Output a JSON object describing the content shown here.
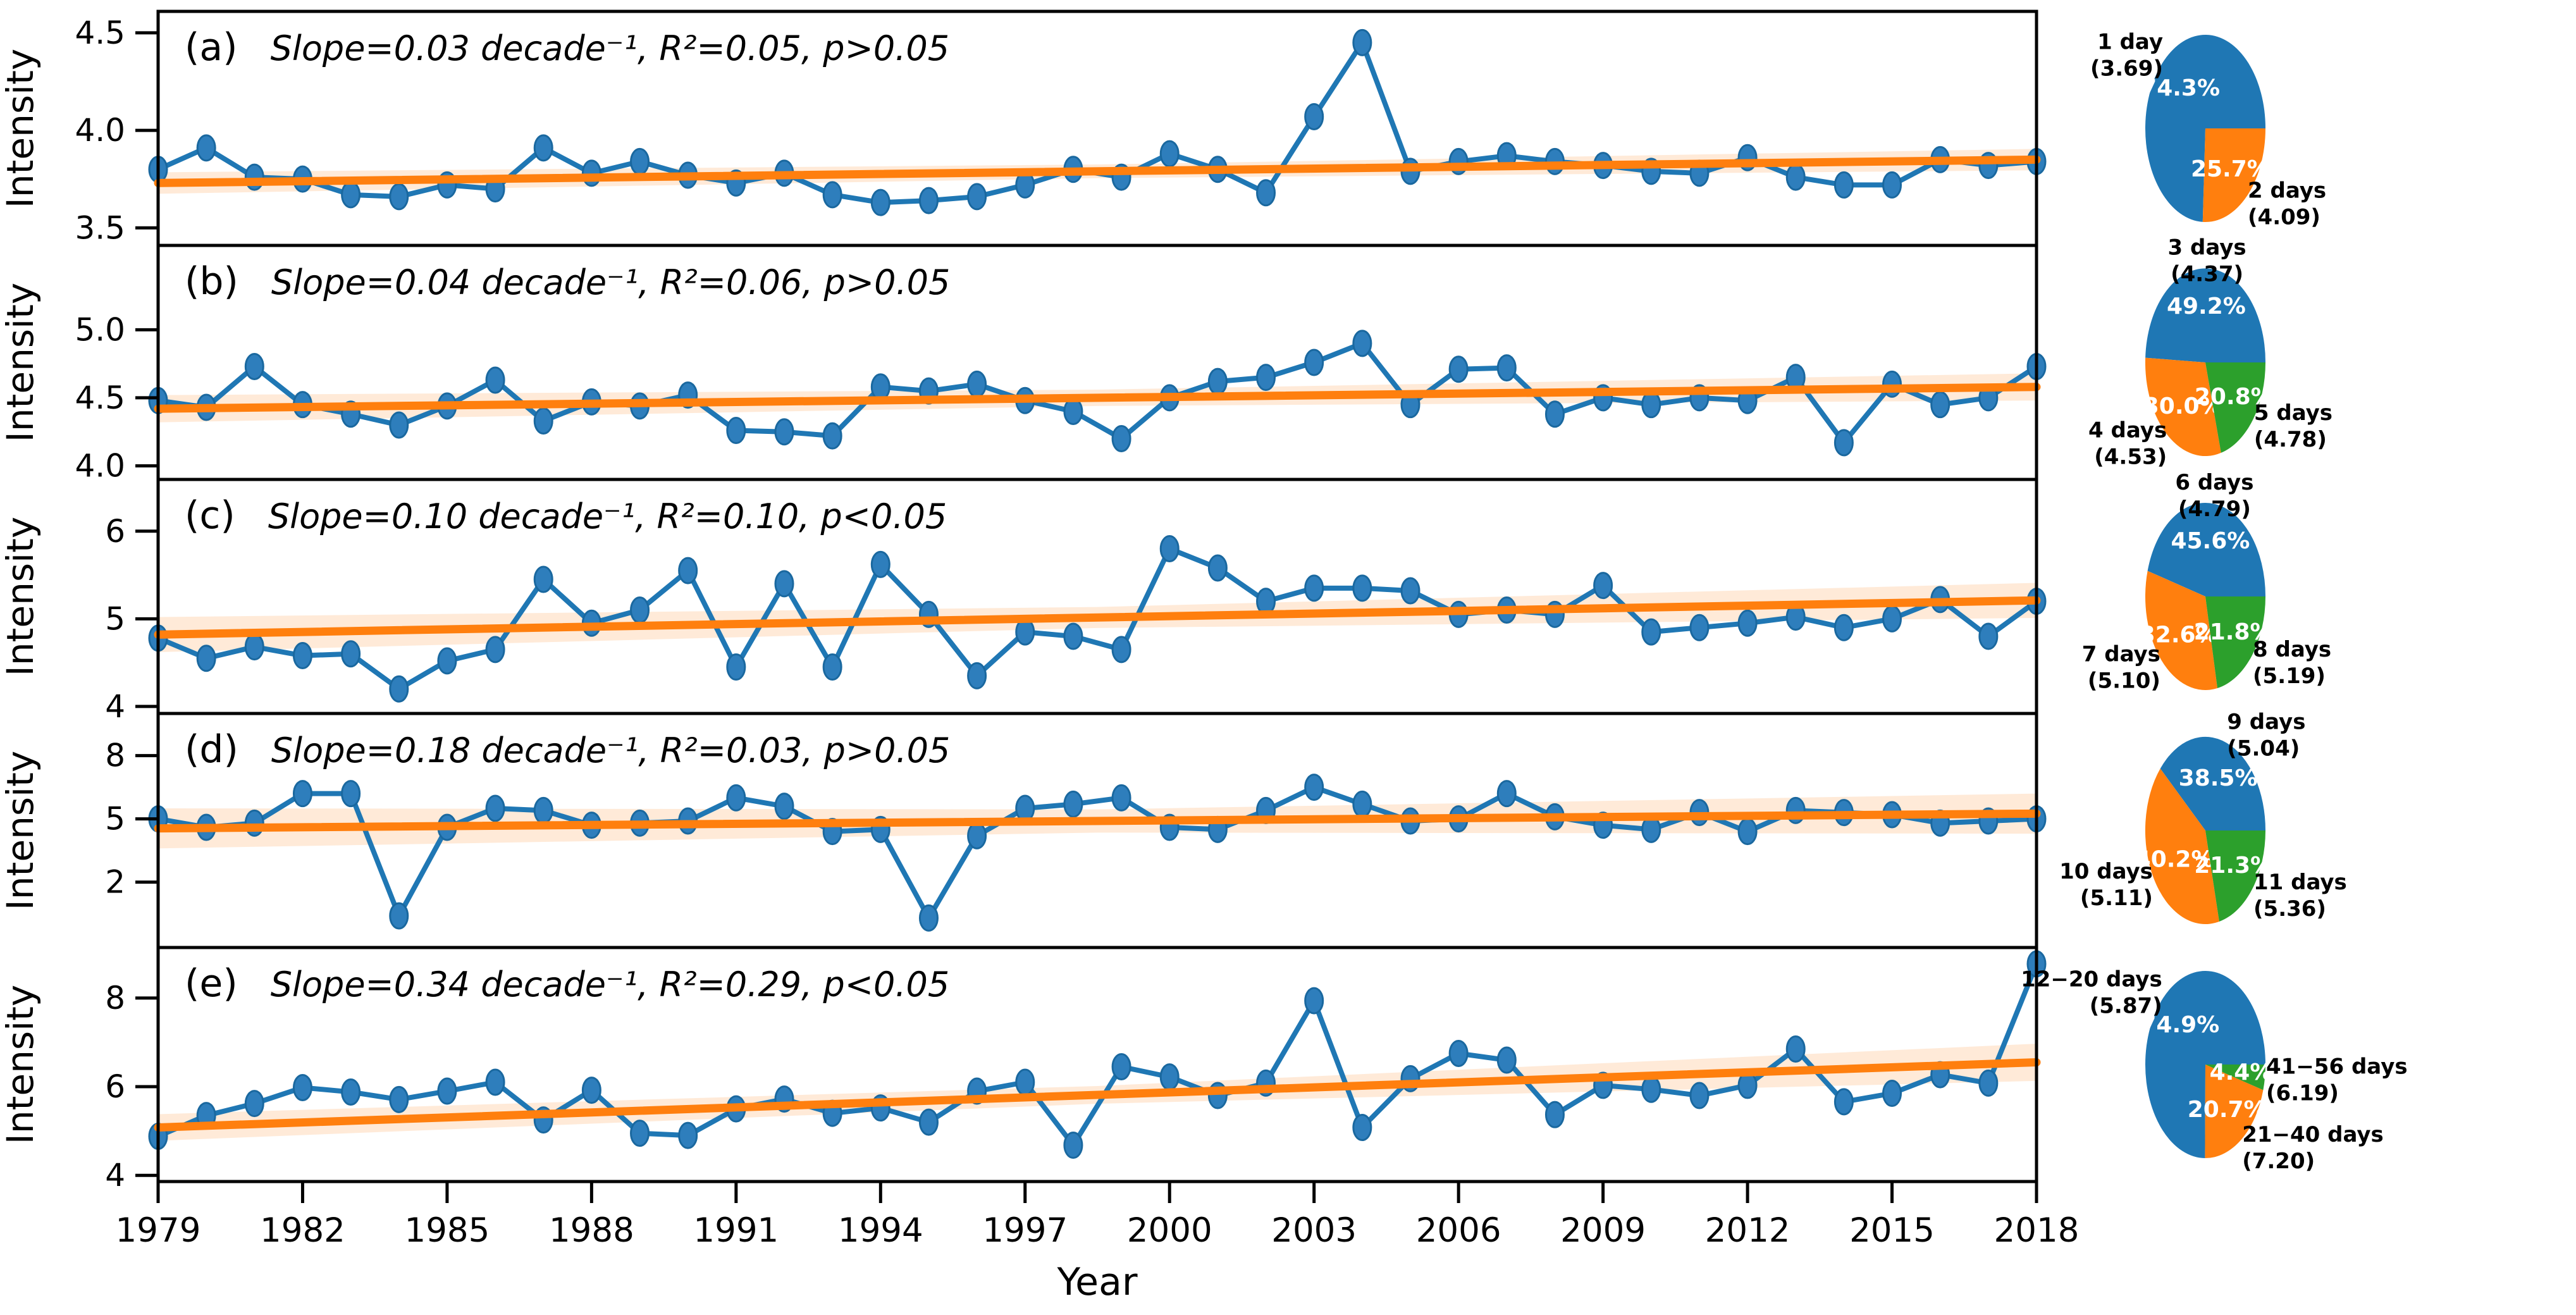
{
  "figure": {
    "xlabel": "Year",
    "x_ticks": [
      "1979",
      "1982",
      "1985",
      "1988",
      "1991",
      "1994",
      "1997",
      "2000",
      "2003",
      "2006",
      "2009",
      "2012",
      "2015",
      "2018"
    ],
    "x_range": [
      1979,
      2018
    ],
    "ylabel_all_panels": "Intensity"
  },
  "colors": {
    "blue": "#1f77b4",
    "orange": "#ff7f0e",
    "green": "#2ca02c",
    "marker_fill": "#2e7ebc",
    "marker_edge": "#1a689f",
    "band_fill": "#ff7f0e",
    "axis": "#000000"
  },
  "chart_data": [
    {
      "type": "line",
      "panel": "a",
      "tag": "(a)",
      "annotation": "Slope=0.03 decade⁻¹, R²=0.05, p>0.05",
      "slope_per_decade": 0.03,
      "r_squared": 0.05,
      "p": ">0.05",
      "ylabel": "Intensity",
      "x_start": 1979,
      "x_end": 2018,
      "ylim": [
        3.41,
        4.61
      ],
      "ytick_values": [
        4.5,
        4.0,
        3.5
      ],
      "yticks": [
        "4.5",
        "4.0",
        "3.5"
      ],
      "values": [
        3.8,
        3.91,
        3.76,
        3.75,
        3.67,
        3.66,
        3.72,
        3.7,
        3.91,
        3.78,
        3.84,
        3.77,
        3.73,
        3.78,
        3.67,
        3.63,
        3.64,
        3.66,
        3.72,
        3.8,
        3.76,
        3.88,
        3.8,
        3.68,
        4.07,
        4.45,
        3.79,
        3.84,
        3.87,
        3.84,
        3.82,
        3.79,
        3.78,
        3.86,
        3.76,
        3.72,
        3.72,
        3.85,
        3.82,
        3.84
      ],
      "trend": {
        "start": 3.73,
        "end": 3.85,
        "band_half_widths": [
          0.055,
          0.035,
          0.055
        ]
      }
    },
    {
      "type": "line",
      "panel": "b",
      "tag": "(b)",
      "annotation": "Slope=0.04 decade⁻¹, R²=0.06, p>0.05",
      "slope_per_decade": 0.04,
      "r_squared": 0.06,
      "p": ">0.05",
      "ylabel": "Intensity",
      "x_start": 1979,
      "x_end": 2018,
      "ylim": [
        3.9,
        5.62
      ],
      "ytick_values": [
        5.0,
        4.5,
        4.0
      ],
      "yticks": [
        "5.0",
        "4.5",
        "4.0"
      ],
      "values": [
        4.48,
        4.43,
        4.73,
        4.45,
        4.38,
        4.3,
        4.44,
        4.63,
        4.33,
        4.47,
        4.44,
        4.52,
        4.26,
        4.25,
        4.22,
        4.58,
        4.55,
        4.6,
        4.48,
        4.4,
        4.2,
        4.5,
        4.62,
        4.65,
        4.76,
        4.9,
        4.45,
        4.71,
        4.72,
        4.38,
        4.5,
        4.45,
        4.5,
        4.48,
        4.65,
        4.17,
        4.6,
        4.45,
        4.5,
        4.73
      ],
      "trend": {
        "start": 4.42,
        "end": 4.58,
        "band_half_widths": [
          0.1,
          0.06,
          0.1
        ]
      }
    },
    {
      "type": "line",
      "panel": "c",
      "tag": "(c)",
      "annotation": "Slope=0.10 decade⁻¹, R²=0.10, p<0.05",
      "slope_per_decade": 0.1,
      "r_squared": 0.1,
      "p": "<0.05",
      "ylabel": "Intensity",
      "x_start": 1979,
      "x_end": 2018,
      "ylim": [
        3.92,
        6.59
      ],
      "ytick_values": [
        6,
        5,
        4
      ],
      "yticks": [
        "6",
        "5",
        "4"
      ],
      "values": [
        4.78,
        4.55,
        4.68,
        4.58,
        4.6,
        4.2,
        4.52,
        4.65,
        5.45,
        4.95,
        5.1,
        5.55,
        4.45,
        5.4,
        4.45,
        5.62,
        5.05,
        4.35,
        4.85,
        4.8,
        4.65,
        5.8,
        5.58,
        5.2,
        5.35,
        5.35,
        5.32,
        5.05,
        5.1,
        5.05,
        5.38,
        4.85,
        4.9,
        4.95,
        5.02,
        4.9,
        5.0,
        5.22,
        4.8,
        5.2
      ],
      "trend": {
        "start": 4.82,
        "end": 5.21,
        "band_half_widths": [
          0.2,
          0.12,
          0.2
        ]
      }
    },
    {
      "type": "line",
      "panel": "d",
      "tag": "(d)",
      "annotation": "Slope=0.18 decade⁻¹, R²=0.03, p>0.05",
      "slope_per_decade": 0.18,
      "r_squared": 0.03,
      "p": ">0.05",
      "ylabel": "Intensity",
      "x_start": 1979,
      "x_end": 2018,
      "ylim": [
        -1.1,
        10.0
      ],
      "ytick_values": [
        8,
        5,
        2
      ],
      "yticks": [
        "8",
        "5",
        "2"
      ],
      "values": [
        5.0,
        4.6,
        4.8,
        6.2,
        6.2,
        0.4,
        4.6,
        5.5,
        5.4,
        4.7,
        4.8,
        4.9,
        6.0,
        5.6,
        4.4,
        4.5,
        0.3,
        4.2,
        5.5,
        5.7,
        6.0,
        4.6,
        4.5,
        5.4,
        6.5,
        5.7,
        4.9,
        5.0,
        6.2,
        5.1,
        4.7,
        4.5,
        5.3,
        4.4,
        5.4,
        5.3,
        5.2,
        4.8,
        4.9,
        5.0
      ],
      "trend": {
        "start": 4.55,
        "end": 5.25,
        "band_half_widths": [
          0.95,
          0.55,
          0.95
        ]
      }
    },
    {
      "type": "line",
      "panel": "e",
      "tag": "(e)",
      "annotation": "Slope=0.34 decade⁻¹, R²=0.29, p<0.05",
      "slope_per_decade": 0.34,
      "r_squared": 0.29,
      "p": "<0.05",
      "ylabel": "Intensity",
      "x_start": 1979,
      "x_end": 2018,
      "ylim": [
        3.86,
        9.14
      ],
      "ytick_values": [
        8,
        6,
        4
      ],
      "yticks": [
        "8",
        "6",
        "4"
      ],
      "values": [
        4.88,
        5.35,
        5.62,
        5.98,
        5.88,
        5.71,
        5.9,
        6.1,
        5.25,
        5.92,
        4.95,
        4.9,
        5.5,
        5.72,
        5.4,
        5.52,
        5.2,
        5.9,
        6.1,
        4.68,
        6.45,
        6.22,
        5.8,
        6.08,
        7.94,
        5.08,
        6.18,
        6.75,
        6.6,
        5.37,
        6.03,
        5.94,
        5.8,
        6.03,
        6.85,
        5.66,
        5.85,
        6.27,
        6.08,
        8.77
      ],
      "trend": {
        "start": 5.08,
        "end": 6.55,
        "band_half_widths": [
          0.3,
          0.2,
          0.42
        ]
      }
    },
    {
      "type": "pie",
      "row": 1,
      "slices": [
        {
          "label": "1 day",
          "mean": "(3.69)",
          "pct": 74.3,
          "color": "#1f77b4"
        },
        {
          "label": "2 days",
          "mean": "(4.09)",
          "pct": 25.7,
          "color": "#ff7f0e"
        }
      ]
    },
    {
      "type": "pie",
      "row": 2,
      "slices": [
        {
          "label": "3 days",
          "mean": "(4.37)",
          "pct": 49.2,
          "color": "#1f77b4"
        },
        {
          "label": "4 days",
          "mean": "(4.53)",
          "pct": 30.0,
          "color": "#ff7f0e"
        },
        {
          "label": "5 days",
          "mean": "(4.78)",
          "pct": 20.8,
          "color": "#2ca02c"
        }
      ]
    },
    {
      "type": "pie",
      "row": 3,
      "slices": [
        {
          "label": "6 days",
          "mean": "(4.79)",
          "pct": 45.6,
          "color": "#1f77b4"
        },
        {
          "label": "7 days",
          "mean": "(5.10)",
          "pct": 32.6,
          "color": "#ff7f0e"
        },
        {
          "label": "8 days",
          "mean": "(5.19)",
          "pct": 21.8,
          "color": "#2ca02c"
        }
      ]
    },
    {
      "type": "pie",
      "row": 4,
      "slices": [
        {
          "label": "9 days",
          "mean": "(5.04)",
          "pct": 38.5,
          "color": "#1f77b4"
        },
        {
          "label": "10 days",
          "mean": "(5.11)",
          "pct": 40.2,
          "color": "#ff7f0e"
        },
        {
          "label": "11 days",
          "mean": "(5.36)",
          "pct": 21.3,
          "color": "#2ca02c"
        }
      ]
    },
    {
      "type": "pie",
      "row": 5,
      "slices": [
        {
          "label": "12−20 days",
          "mean": "(5.87)",
          "pct": 74.9,
          "color": "#1f77b4"
        },
        {
          "label": "21−40 days",
          "mean": "(7.20)",
          "pct": 20.7,
          "color": "#ff7f0e"
        },
        {
          "label": "41−56 days",
          "mean": "(6.19)",
          "pct": 4.4,
          "color": "#2ca02c"
        }
      ]
    }
  ]
}
